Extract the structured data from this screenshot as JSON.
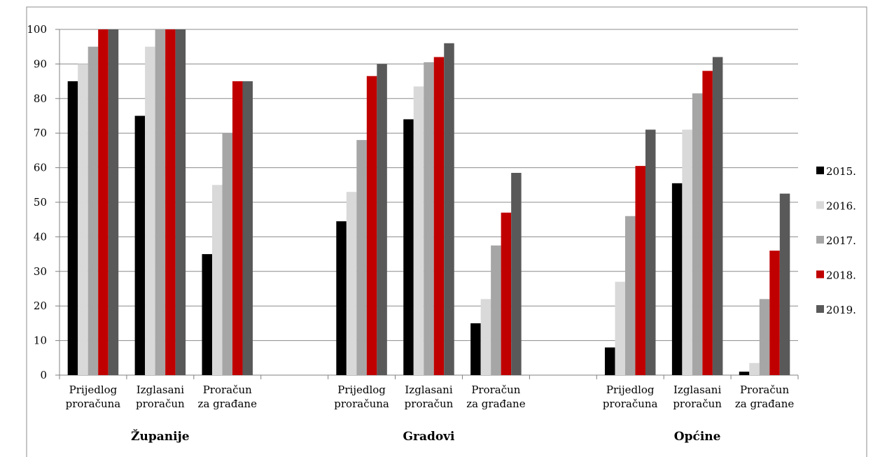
{
  "caption_fragment": "",
  "chart_data": {
    "type": "bar",
    "title": "",
    "xlabel": "",
    "ylabel": "",
    "ylim": [
      0,
      100
    ],
    "yticks": [
      0,
      10,
      20,
      30,
      40,
      50,
      60,
      70,
      80,
      90,
      100
    ],
    "grid": true,
    "legend_position": "right",
    "groups": [
      {
        "name": "Županije",
        "categories": [
          {
            "label": [
              "Prijedlog",
              "proračuna"
            ],
            "values": [
              85,
              90,
              95,
              100,
              100
            ]
          },
          {
            "label": [
              "Izglasani",
              "proračun"
            ],
            "values": [
              75,
              95,
              100,
              100,
              100
            ]
          },
          {
            "label": [
              "Proračun",
              "za građane"
            ],
            "values": [
              35,
              55,
              70,
              85,
              85
            ]
          }
        ]
      },
      {
        "name": "Gradovi",
        "categories": [
          {
            "label": [
              "Prijedlog",
              "proračuna"
            ],
            "values": [
              44.5,
              53,
              68,
              86.5,
              90
            ]
          },
          {
            "label": [
              "Izglasani",
              "proračun"
            ],
            "values": [
              74,
              83.5,
              90.5,
              92,
              96
            ]
          },
          {
            "label": [
              "Proračun",
              "za građane"
            ],
            "values": [
              15,
              22,
              37.5,
              47,
              58.5
            ]
          }
        ]
      },
      {
        "name": "Općine",
        "categories": [
          {
            "label": [
              "Prijedlog",
              "proračuna"
            ],
            "values": [
              8,
              27,
              46,
              60.5,
              71
            ]
          },
          {
            "label": [
              "Izglasani",
              "proračun"
            ],
            "values": [
              55.5,
              71,
              81.5,
              88,
              92
            ]
          },
          {
            "label": [
              "Proračun",
              "za građane"
            ],
            "values": [
              1,
              3.5,
              22,
              36,
              52.5
            ]
          }
        ]
      }
    ],
    "series": [
      {
        "name": "2015.",
        "color": "#000000"
      },
      {
        "name": "2016.",
        "color": "#d9d9d9"
      },
      {
        "name": "2017.",
        "color": "#a6a6a6"
      },
      {
        "name": "2018.",
        "color": "#c00000"
      },
      {
        "name": "2019.",
        "color": "#595959"
      }
    ]
  }
}
